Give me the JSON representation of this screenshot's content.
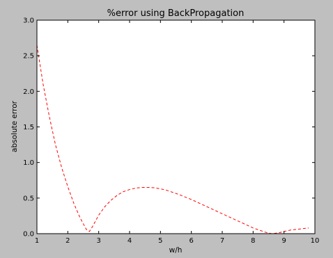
{
  "chart_data": {
    "type": "line",
    "title": "%error using BackPropagation",
    "xlabel": "w/h",
    "ylabel": "absolute error",
    "xlim": [
      1,
      10
    ],
    "ylim": [
      0.0,
      3.0
    ],
    "xticks": [
      "1",
      "2",
      "3",
      "4",
      "5",
      "6",
      "7",
      "8",
      "9",
      "10"
    ],
    "yticks": [
      "0.0",
      "0.5",
      "1.0",
      "1.5",
      "2.0",
      "2.5",
      "3.0"
    ],
    "grid": false,
    "series": [
      {
        "color": "#ff0000",
        "linestyle": "dashed",
        "x": [
          1.0,
          1.2,
          1.4,
          1.6,
          1.8,
          2.0,
          2.2,
          2.4,
          2.6,
          2.7,
          2.8,
          3.0,
          3.2,
          3.4,
          3.6,
          3.8,
          4.0,
          4.2,
          4.4,
          4.6,
          4.8,
          5.0,
          5.2,
          5.4,
          5.6,
          5.8,
          6.0,
          6.2,
          6.4,
          6.6,
          6.8,
          7.0,
          7.2,
          7.4,
          7.6,
          7.8,
          8.0,
          8.2,
          8.4,
          8.6,
          8.8,
          9.0,
          9.2,
          9.4,
          9.6,
          9.8
        ],
        "y": [
          2.65,
          2.1,
          1.65,
          1.25,
          0.93,
          0.66,
          0.42,
          0.22,
          0.06,
          0.03,
          0.1,
          0.26,
          0.38,
          0.47,
          0.54,
          0.59,
          0.62,
          0.64,
          0.65,
          0.65,
          0.645,
          0.63,
          0.61,
          0.58,
          0.55,
          0.515,
          0.48,
          0.44,
          0.4,
          0.36,
          0.32,
          0.28,
          0.24,
          0.2,
          0.16,
          0.12,
          0.08,
          0.05,
          0.02,
          0.0,
          0.01,
          0.03,
          0.05,
          0.06,
          0.07,
          0.08
        ]
      }
    ]
  }
}
